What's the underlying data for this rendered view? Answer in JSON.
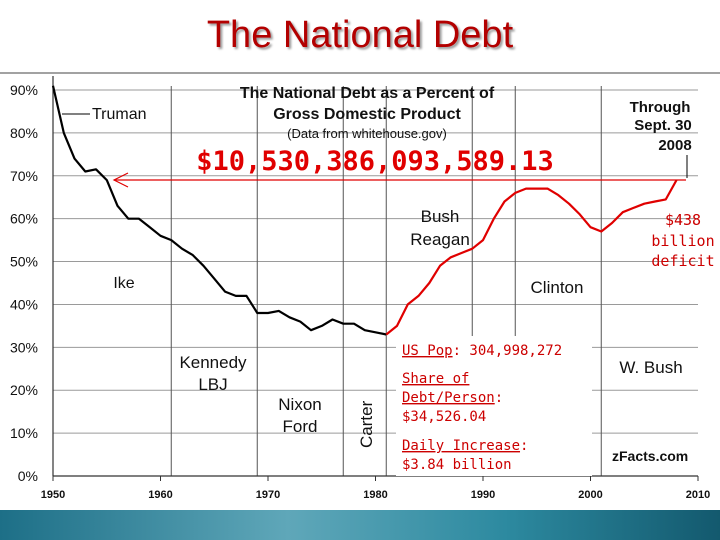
{
  "slide_title": "The National Debt",
  "chart_data": {
    "type": "line",
    "title": "The National Debt as a Percent of",
    "title_line2": "Gross Domestic Product",
    "source": "(Data from whitehouse.gov)",
    "big_number": "$10,530,386,093,589.13",
    "x_ticks": [
      "1950",
      "1960",
      "1970",
      "1980",
      "1990",
      "2000",
      "2010"
    ],
    "y_ticks": [
      "0%",
      "10%",
      "20%",
      "30%",
      "40%",
      "50%",
      "60%",
      "70%",
      "80%",
      "90%"
    ],
    "xlim": [
      1950,
      2010
    ],
    "ylim": [
      0,
      90
    ],
    "presidential_lines": [
      1961,
      1969,
      1977,
      1981,
      1989,
      1993,
      2001
    ],
    "series": [
      {
        "color": "#000000",
        "x": [
          1950,
          1951,
          1952,
          1953,
          1954,
          1955,
          1956,
          1957,
          1958,
          1959,
          1960,
          1961,
          1962,
          1963,
          1964,
          1965,
          1966,
          1967,
          1968,
          1969,
          1970,
          1971,
          1972,
          1973,
          1974,
          1975,
          1976,
          1977,
          1978,
          1979,
          1980,
          1981
        ],
        "y": [
          94,
          80,
          74,
          71,
          71.5,
          69,
          63,
          60,
          60,
          58,
          56,
          55,
          53,
          51.5,
          49,
          46,
          43,
          42,
          42,
          38,
          38,
          38.5,
          37,
          36,
          34,
          35,
          36.5,
          35.5,
          35.5,
          34,
          33.5,
          33
        ]
      },
      {
        "color": "#e00000",
        "x": [
          1981,
          1982,
          1983,
          1984,
          1985,
          1986,
          1987,
          1988,
          1989,
          1990,
          1991,
          1992,
          1993,
          1994,
          1995,
          1996,
          1997,
          1998,
          1999,
          2000,
          2001,
          2002,
          2003,
          2004,
          2005,
          2006,
          2007,
          2008
        ],
        "y": [
          33,
          35,
          40,
          42,
          45,
          49,
          51,
          52,
          53,
          55,
          60,
          64,
          66,
          67,
          67,
          67,
          65.5,
          63.5,
          61,
          58,
          57,
          59,
          61.5,
          62.5,
          63.5,
          64,
          64.5,
          69
        ]
      }
    ],
    "annotations": {
      "truman": "Truman",
      "ike": "Ike",
      "kennedy_lbj_1": "Kennedy",
      "kennedy_lbj_2": "LBJ",
      "nixon_ford_1": "Nixon",
      "nixon_ford_2": "Ford",
      "carter": "Carter",
      "bush_reagan_1": "Bush",
      "bush_reagan_2": "Reagan",
      "clinton": "Clinton",
      "w_bush": "W. Bush",
      "through_1": "Through",
      "through_2": "Sept. 30",
      "through_3": "2008",
      "deficit_1": "$438",
      "deficit_2": "billion",
      "deficit_3": "deficit",
      "zfacts": "zFacts.com"
    },
    "stats": {
      "pop_label": "US Pop",
      "pop_value": ": 304,998,272",
      "share_label_1": "Share of",
      "share_label_2": "Debt/Person",
      "share_value": "$34,526.04",
      "daily_label": "Daily Increase",
      "daily_value": "$3.84 billion"
    }
  }
}
